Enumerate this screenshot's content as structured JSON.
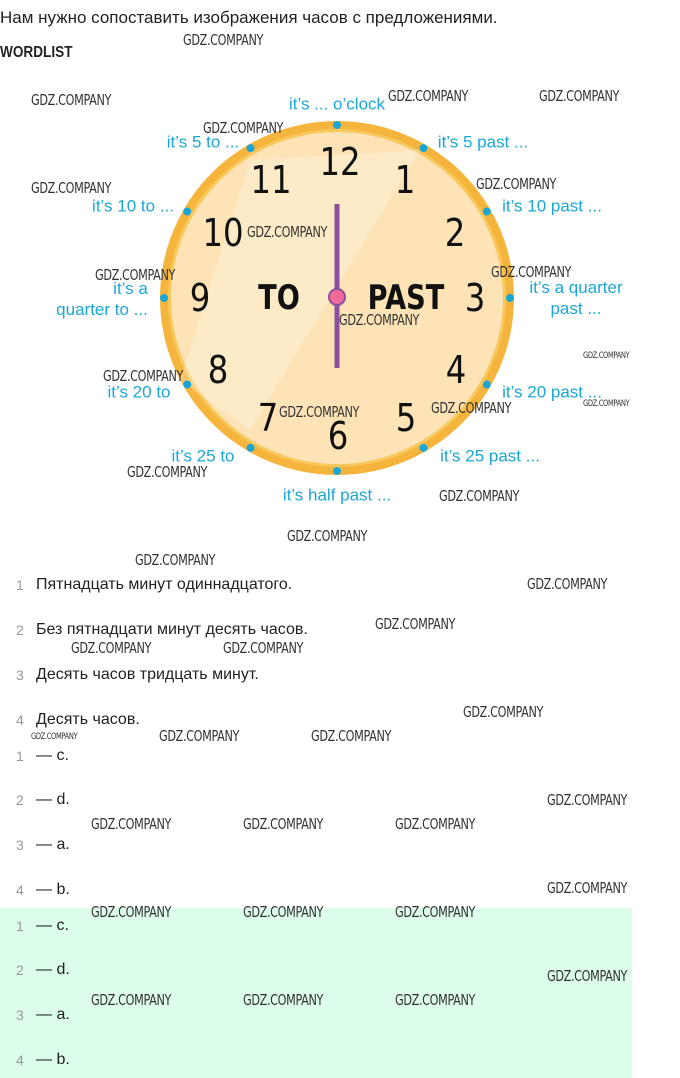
{
  "task": "Нам нужно сопоставить изображения часов с предложениями.",
  "wordlist_title": "WORDLIST",
  "watermark": "GDZ.COMPANY",
  "clock": {
    "numbers": [
      "12",
      "1",
      "2",
      "3",
      "4",
      "5",
      "6",
      "7",
      "8",
      "9",
      "10",
      "11"
    ],
    "to_label": "TO",
    "past_label": "PAST",
    "labels": {
      "oclock": "it’s ... o’clock",
      "p5": "it’s 5 past ...",
      "p10": "it’s 10 past ...",
      "p15a": "it’s a quarter",
      "p15b": "past ...",
      "p20": "it’s 20 past ...",
      "p25": "it’s 25 past ...",
      "half": "it’s half past ...",
      "t25": "it’s 25 to",
      "t20": "it’s 20 to",
      "t15a": "it’s a",
      "t15b": "quarter to ...",
      "t10": "it’s 10 to ...",
      "t5": "it’s 5 to ..."
    },
    "colors": {
      "ring": "#f5b43c",
      "face": "#fde3b5",
      "hand": "#8a4f9e",
      "center": "#f06a9a",
      "labels": "#1ba7d6",
      "dots": "#1ba7d6"
    }
  },
  "sentences": [
    {
      "n": "1",
      "text": "Пятнадцать минут одиннадцатого."
    },
    {
      "n": "2",
      "text": "Без пятнадцати минут десять часов."
    },
    {
      "n": "3",
      "text": "Десять часов тридцать минут."
    },
    {
      "n": "4",
      "text": "Десять часов."
    }
  ],
  "answers": [
    {
      "n": "1",
      "text": "— c."
    },
    {
      "n": "2",
      "text": "— d."
    },
    {
      "n": "3",
      "text": "— a."
    },
    {
      "n": "4",
      "text": "— b."
    }
  ],
  "answers_highlighted": [
    {
      "n": "1",
      "text": "— c."
    },
    {
      "n": "2",
      "text": "— d."
    },
    {
      "n": "3",
      "text": "— a."
    },
    {
      "n": "4",
      "text": "— b."
    }
  ]
}
